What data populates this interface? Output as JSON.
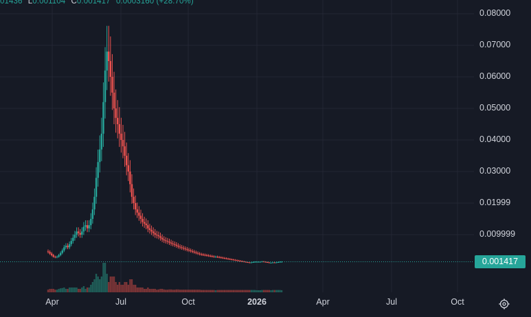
{
  "header": {
    "open_partial": "01436",
    "low_label": "L",
    "low_value": "0.001104",
    "close_label": "C",
    "close_value": "0.001417",
    "change_text": "0.0003160 (+28.70%)"
  },
  "price_axis": {
    "ticks": [
      "0.08000",
      "0.07000",
      "0.06000",
      "0.05000",
      "0.04000",
      "0.03000",
      "0.01999",
      "0.009999"
    ],
    "last_price": "0.001417",
    "last_price_color": "#26a69a"
  },
  "time_axis": {
    "ticks": [
      "Apr",
      "Jul",
      "Oct",
      "2026",
      "Apr",
      "Jul",
      "Oct"
    ]
  },
  "icons": {
    "settings": "settings-gear-icon"
  },
  "colors": {
    "up": "#26a69a",
    "down": "#ef5350",
    "background": "#161a25"
  },
  "chart_data": {
    "type": "candlestick",
    "ylim": [
      0,
      0.085
    ],
    "y_scale": "linear",
    "x_ticks": [
      "Apr",
      "Jul",
      "Oct",
      "2026",
      "Apr",
      "Jul",
      "Oct"
    ],
    "grid": true,
    "last_price": 0.001417,
    "last_change": "0.0003160 (+28.70%)",
    "series": [
      {
        "values": [
          0.0045,
          0.004,
          0.0035,
          0.003,
          0.0028,
          0.003,
          0.0035,
          0.0042,
          0.005,
          0.006,
          0.0065,
          0.006,
          0.007,
          0.008,
          0.009,
          0.01,
          0.011,
          0.0105,
          0.01,
          0.011,
          0.0125,
          0.013,
          0.012,
          0.013,
          0.015,
          0.018,
          0.022,
          0.028,
          0.033,
          0.037,
          0.042,
          0.052,
          0.062,
          0.068,
          0.065,
          0.06,
          0.055,
          0.05,
          0.047,
          0.045,
          0.042,
          0.04,
          0.038,
          0.035,
          0.032,
          0.03,
          0.026,
          0.022,
          0.02,
          0.018,
          0.017,
          0.016,
          0.015,
          0.014,
          0.0135,
          0.013,
          0.012,
          0.0115,
          0.011,
          0.0105,
          0.01,
          0.0098,
          0.0095,
          0.009,
          0.0085,
          0.0082,
          0.008,
          0.0078,
          0.0075,
          0.0072,
          0.007,
          0.0068,
          0.0065,
          0.0062,
          0.006,
          0.0058,
          0.0056,
          0.0054,
          0.0052,
          0.005,
          0.0048,
          0.0046,
          0.0044,
          0.0042,
          0.004,
          0.0038,
          0.0037,
          0.0036,
          0.0035,
          0.0034,
          0.0033,
          0.0032,
          0.0031,
          0.003,
          0.003,
          0.0029,
          0.0028,
          0.0027,
          0.0026,
          0.0025,
          0.0024,
          0.0023,
          0.0022,
          0.0021,
          0.002,
          0.0019,
          0.0018,
          0.0017,
          0.0016,
          0.0015,
          0.0014,
          0.0013,
          0.0012,
          0.0011,
          0.0012,
          0.0013,
          0.0014,
          0.0014,
          0.0014,
          0.0014,
          0.0015,
          0.0014,
          0.0013,
          0.0012,
          0.0011,
          0.0011,
          0.0012,
          0.0011,
          0.0012,
          0.0013,
          0.0014,
          0.001417
        ]
      }
    ]
  }
}
